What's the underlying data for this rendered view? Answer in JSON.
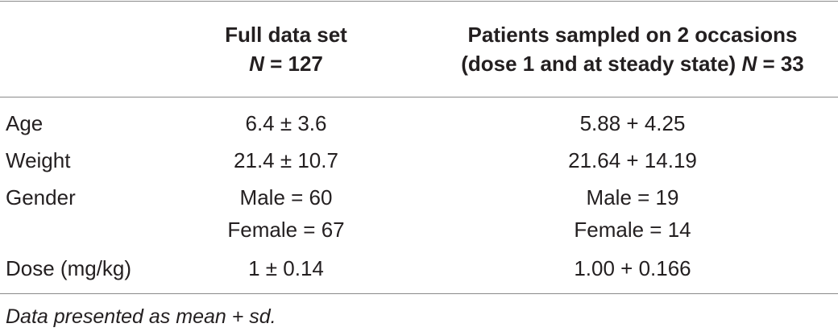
{
  "table": {
    "header": {
      "col1": {
        "line1": "Full data set",
        "n_label": "N",
        "n_value": " = 127"
      },
      "col2": {
        "line1": "Patients sampled on 2 occasions",
        "line2_text": "(dose 1 and at steady state) ",
        "n_label": "N",
        "n_value": " = 33"
      }
    },
    "rows": [
      {
        "label": "Age",
        "col1": [
          "6.4 ± 3.6"
        ],
        "col2": [
          "5.88 + 4.25"
        ]
      },
      {
        "label": "Weight",
        "col1": [
          "21.4 ± 10.7"
        ],
        "col2": [
          "21.64 + 14.19"
        ]
      },
      {
        "label": "Gender",
        "col1": [
          "Male = 60",
          "Female = 67"
        ],
        "col2": [
          "Male = 19",
          "Female = 14"
        ]
      },
      {
        "label": "Dose (mg/kg)",
        "col1": [
          "1 ± 0.14"
        ],
        "col2": [
          "1.00 + 0.166"
        ]
      }
    ],
    "footnote": "Data presented as mean + sd."
  }
}
